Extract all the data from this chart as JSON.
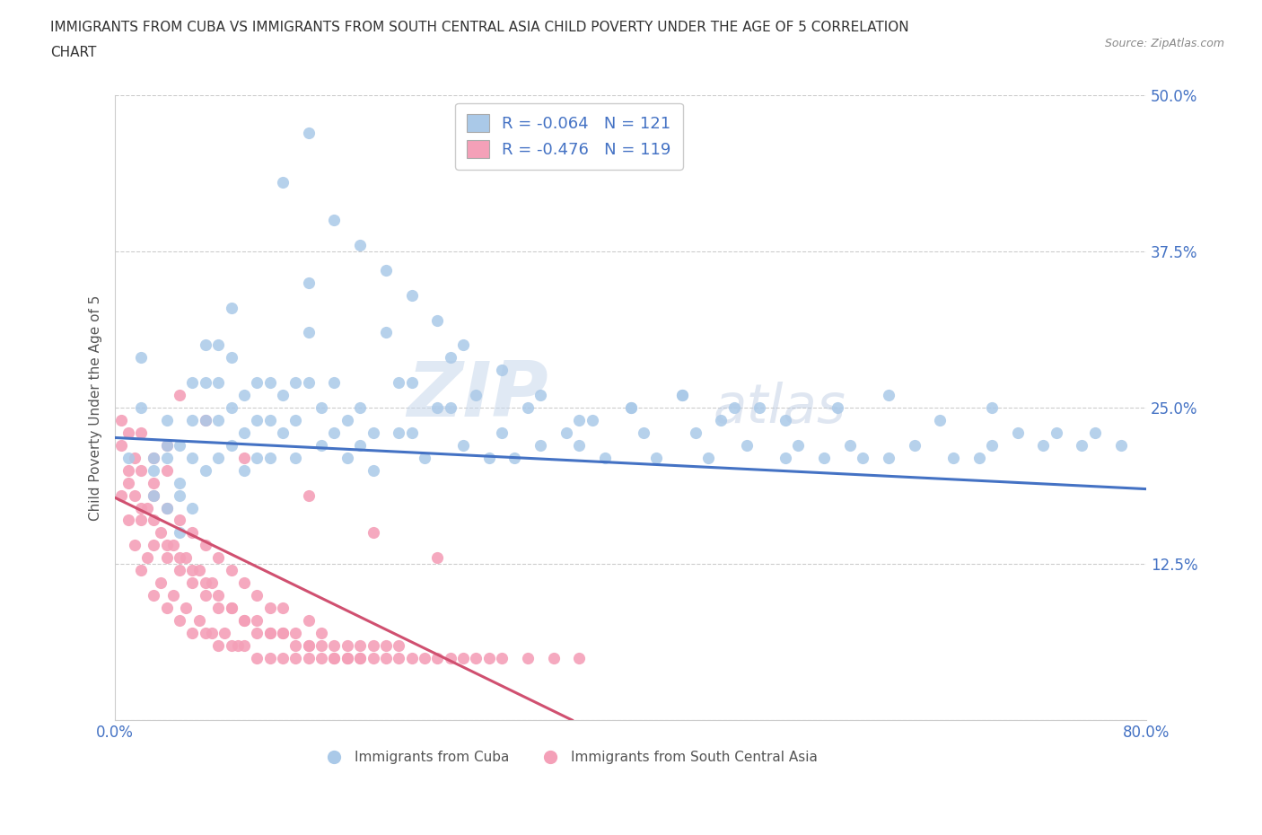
{
  "title_line1": "IMMIGRANTS FROM CUBA VS IMMIGRANTS FROM SOUTH CENTRAL ASIA CHILD POVERTY UNDER THE AGE OF 5 CORRELATION",
  "title_line2": "CHART",
  "source": "Source: ZipAtlas.com",
  "ylabel": "Child Poverty Under the Age of 5",
  "xlim": [
    0,
    0.8
  ],
  "ylim": [
    0,
    0.5
  ],
  "yticks": [
    0.0,
    0.125,
    0.25,
    0.375,
    0.5
  ],
  "yticklabels": [
    "",
    "12.5%",
    "25.0%",
    "37.5%",
    "50.0%"
  ],
  "cuba_R": -0.064,
  "cuba_N": 121,
  "sca_R": -0.476,
  "sca_N": 119,
  "cuba_color": "#aac9e8",
  "cuba_line_color": "#4472c4",
  "sca_color": "#f4a0b8",
  "sca_line_color": "#d05070",
  "legend_label_cuba": "Immigrants from Cuba",
  "legend_label_sca": "Immigrants from South Central Asia",
  "watermark_zip": "ZIP",
  "watermark_atlas": "atlas",
  "cuba_trend_x0": 0.0,
  "cuba_trend_y0": 0.226,
  "cuba_trend_x1": 0.8,
  "cuba_trend_y1": 0.185,
  "sca_trend_x0": 0.0,
  "sca_trend_y0": 0.178,
  "sca_trend_x1": 0.355,
  "sca_trend_y1": 0.0,
  "cuba_scatter_x": [
    0.01,
    0.02,
    0.02,
    0.03,
    0.03,
    0.03,
    0.04,
    0.04,
    0.04,
    0.04,
    0.05,
    0.05,
    0.05,
    0.05,
    0.06,
    0.06,
    0.06,
    0.06,
    0.07,
    0.07,
    0.07,
    0.07,
    0.08,
    0.08,
    0.08,
    0.08,
    0.09,
    0.09,
    0.09,
    0.09,
    0.1,
    0.1,
    0.1,
    0.11,
    0.11,
    0.11,
    0.12,
    0.12,
    0.12,
    0.13,
    0.13,
    0.14,
    0.14,
    0.14,
    0.15,
    0.15,
    0.15,
    0.16,
    0.16,
    0.17,
    0.17,
    0.18,
    0.18,
    0.19,
    0.19,
    0.2,
    0.2,
    0.21,
    0.22,
    0.22,
    0.23,
    0.23,
    0.24,
    0.25,
    0.26,
    0.26,
    0.27,
    0.28,
    0.29,
    0.3,
    0.31,
    0.32,
    0.33,
    0.35,
    0.36,
    0.37,
    0.38,
    0.4,
    0.41,
    0.42,
    0.44,
    0.45,
    0.46,
    0.47,
    0.49,
    0.5,
    0.52,
    0.53,
    0.55,
    0.57,
    0.58,
    0.6,
    0.62,
    0.65,
    0.67,
    0.68,
    0.7,
    0.72,
    0.73,
    0.75,
    0.76,
    0.78,
    0.13,
    0.15,
    0.17,
    0.19,
    0.21,
    0.23,
    0.25,
    0.27,
    0.3,
    0.33,
    0.36,
    0.4,
    0.44,
    0.48,
    0.52,
    0.56,
    0.6,
    0.64,
    0.68
  ],
  "cuba_scatter_y": [
    0.21,
    0.29,
    0.25,
    0.21,
    0.2,
    0.18,
    0.24,
    0.21,
    0.17,
    0.22,
    0.19,
    0.22,
    0.18,
    0.15,
    0.27,
    0.24,
    0.21,
    0.17,
    0.3,
    0.27,
    0.24,
    0.2,
    0.3,
    0.27,
    0.24,
    0.21,
    0.33,
    0.29,
    0.25,
    0.22,
    0.26,
    0.23,
    0.2,
    0.27,
    0.24,
    0.21,
    0.27,
    0.24,
    0.21,
    0.26,
    0.23,
    0.27,
    0.24,
    0.21,
    0.35,
    0.31,
    0.27,
    0.25,
    0.22,
    0.27,
    0.23,
    0.24,
    0.21,
    0.25,
    0.22,
    0.23,
    0.2,
    0.31,
    0.27,
    0.23,
    0.27,
    0.23,
    0.21,
    0.25,
    0.29,
    0.25,
    0.22,
    0.26,
    0.21,
    0.23,
    0.21,
    0.25,
    0.22,
    0.23,
    0.22,
    0.24,
    0.21,
    0.25,
    0.23,
    0.21,
    0.26,
    0.23,
    0.21,
    0.24,
    0.22,
    0.25,
    0.21,
    0.22,
    0.21,
    0.22,
    0.21,
    0.21,
    0.22,
    0.21,
    0.21,
    0.22,
    0.23,
    0.22,
    0.23,
    0.22,
    0.23,
    0.22,
    0.43,
    0.47,
    0.4,
    0.38,
    0.36,
    0.34,
    0.32,
    0.3,
    0.28,
    0.26,
    0.24,
    0.25,
    0.26,
    0.25,
    0.24,
    0.25,
    0.26,
    0.24,
    0.25
  ],
  "sca_scatter_x": [
    0.005,
    0.005,
    0.01,
    0.01,
    0.01,
    0.015,
    0.015,
    0.02,
    0.02,
    0.02,
    0.02,
    0.025,
    0.025,
    0.03,
    0.03,
    0.03,
    0.03,
    0.035,
    0.035,
    0.04,
    0.04,
    0.04,
    0.04,
    0.045,
    0.045,
    0.05,
    0.05,
    0.05,
    0.055,
    0.055,
    0.06,
    0.06,
    0.06,
    0.065,
    0.065,
    0.07,
    0.07,
    0.07,
    0.075,
    0.075,
    0.08,
    0.08,
    0.08,
    0.085,
    0.09,
    0.09,
    0.09,
    0.095,
    0.1,
    0.1,
    0.1,
    0.11,
    0.11,
    0.11,
    0.12,
    0.12,
    0.12,
    0.13,
    0.13,
    0.13,
    0.14,
    0.14,
    0.15,
    0.15,
    0.15,
    0.16,
    0.16,
    0.17,
    0.17,
    0.18,
    0.18,
    0.19,
    0.19,
    0.2,
    0.2,
    0.21,
    0.21,
    0.22,
    0.22,
    0.23,
    0.24,
    0.25,
    0.26,
    0.27,
    0.28,
    0.29,
    0.3,
    0.32,
    0.34,
    0.36,
    0.25,
    0.2,
    0.15,
    0.1,
    0.07,
    0.05,
    0.04,
    0.03,
    0.02,
    0.015,
    0.01,
    0.005,
    0.03,
    0.04,
    0.05,
    0.06,
    0.07,
    0.08,
    0.09,
    0.1,
    0.11,
    0.12,
    0.13,
    0.14,
    0.15,
    0.16,
    0.17,
    0.18,
    0.19
  ],
  "sca_scatter_y": [
    0.18,
    0.22,
    0.16,
    0.2,
    0.23,
    0.14,
    0.18,
    0.12,
    0.16,
    0.2,
    0.23,
    0.13,
    0.17,
    0.1,
    0.14,
    0.18,
    0.21,
    0.11,
    0.15,
    0.09,
    0.13,
    0.17,
    0.2,
    0.1,
    0.14,
    0.08,
    0.12,
    0.16,
    0.09,
    0.13,
    0.07,
    0.11,
    0.15,
    0.08,
    0.12,
    0.07,
    0.1,
    0.14,
    0.07,
    0.11,
    0.06,
    0.09,
    0.13,
    0.07,
    0.06,
    0.09,
    0.12,
    0.06,
    0.06,
    0.08,
    0.11,
    0.05,
    0.07,
    0.1,
    0.05,
    0.07,
    0.09,
    0.05,
    0.07,
    0.09,
    0.05,
    0.07,
    0.05,
    0.06,
    0.08,
    0.05,
    0.07,
    0.05,
    0.06,
    0.05,
    0.06,
    0.05,
    0.06,
    0.05,
    0.06,
    0.05,
    0.06,
    0.05,
    0.06,
    0.05,
    0.05,
    0.05,
    0.05,
    0.05,
    0.05,
    0.05,
    0.05,
    0.05,
    0.05,
    0.05,
    0.13,
    0.15,
    0.18,
    0.21,
    0.24,
    0.26,
    0.22,
    0.19,
    0.17,
    0.21,
    0.19,
    0.24,
    0.16,
    0.14,
    0.13,
    0.12,
    0.11,
    0.1,
    0.09,
    0.08,
    0.08,
    0.07,
    0.07,
    0.06,
    0.06,
    0.06,
    0.05,
    0.05,
    0.05
  ]
}
